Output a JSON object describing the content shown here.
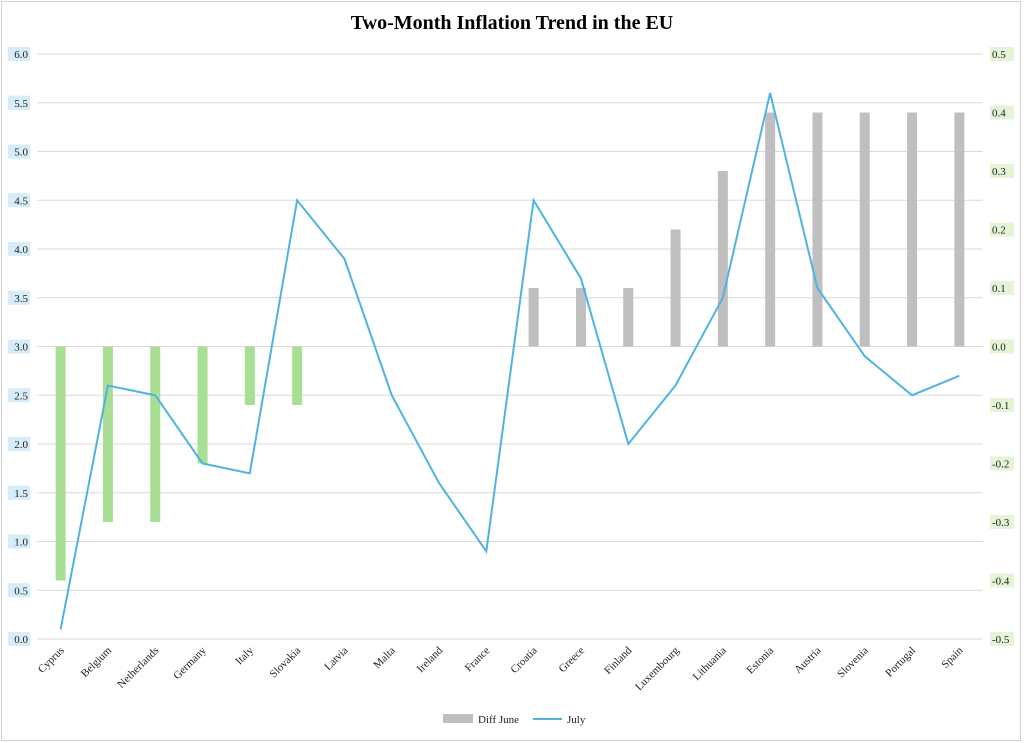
{
  "title": "Two-Month Inflation Trend in the EU",
  "chart_data": {
    "type": "bar+line",
    "title": "Two-Month Inflation Trend in the EU",
    "categories": [
      "Cyprus",
      "Belgium",
      "Netherlands",
      "Germany",
      "Italy",
      "Slovakia",
      "Latvia",
      "Malta",
      "Ireland",
      "France",
      "Croatia",
      "Greece",
      "Finland",
      "Luxembourg",
      "Lithuania",
      "Estonia",
      "Austria",
      "Slovenia",
      "Portugal",
      "Spain"
    ],
    "series": [
      {
        "name": "Diff June",
        "type": "bar",
        "axis": "right",
        "values": [
          -0.4,
          -0.3,
          -0.3,
          -0.2,
          -0.1,
          -0.1,
          0,
          0,
          0,
          0,
          0.1,
          0.1,
          0.1,
          0.2,
          0.3,
          0.4,
          0.4,
          0.4,
          0.4,
          0.4
        ]
      },
      {
        "name": "July",
        "type": "line",
        "axis": "left",
        "values": [
          0.1,
          2.6,
          2.5,
          1.8,
          1.7,
          4.5,
          3.9,
          2.5,
          1.6,
          0.9,
          4.5,
          3.7,
          2.0,
          2.6,
          3.5,
          5.6,
          3.6,
          2.9,
          2.5,
          2.7
        ]
      }
    ],
    "y_left": {
      "ylim": [
        0,
        6
      ],
      "ticks": [
        "0.0",
        "0.5",
        "1.0",
        "1.5",
        "2.0",
        "2.5",
        "3.0",
        "3.5",
        "4.0",
        "4.5",
        "5.0",
        "5.5",
        "6.0"
      ]
    },
    "y_right": {
      "ylim": [
        -0.5,
        0.5
      ],
      "ticks": [
        "-0.5",
        "-0.4",
        "-0.3",
        "-0.2",
        "-0.1",
        "0.0",
        "0.1",
        "0.2",
        "0.3",
        "0.4",
        "0.5"
      ]
    },
    "colors": {
      "bar_positive": "#bfbfbf",
      "bar_negative": "#a9df95",
      "line": "#4fb3e0",
      "grid": "#d9d9d9",
      "left_tick_highlight": "#d6ecf8",
      "right_tick_highlight": "#e3f5d6"
    },
    "legend": [
      {
        "label": "Diff June",
        "swatch": "bar"
      },
      {
        "label": "July",
        "swatch": "line"
      }
    ],
    "legend_position": "bottom",
    "grid": true
  }
}
